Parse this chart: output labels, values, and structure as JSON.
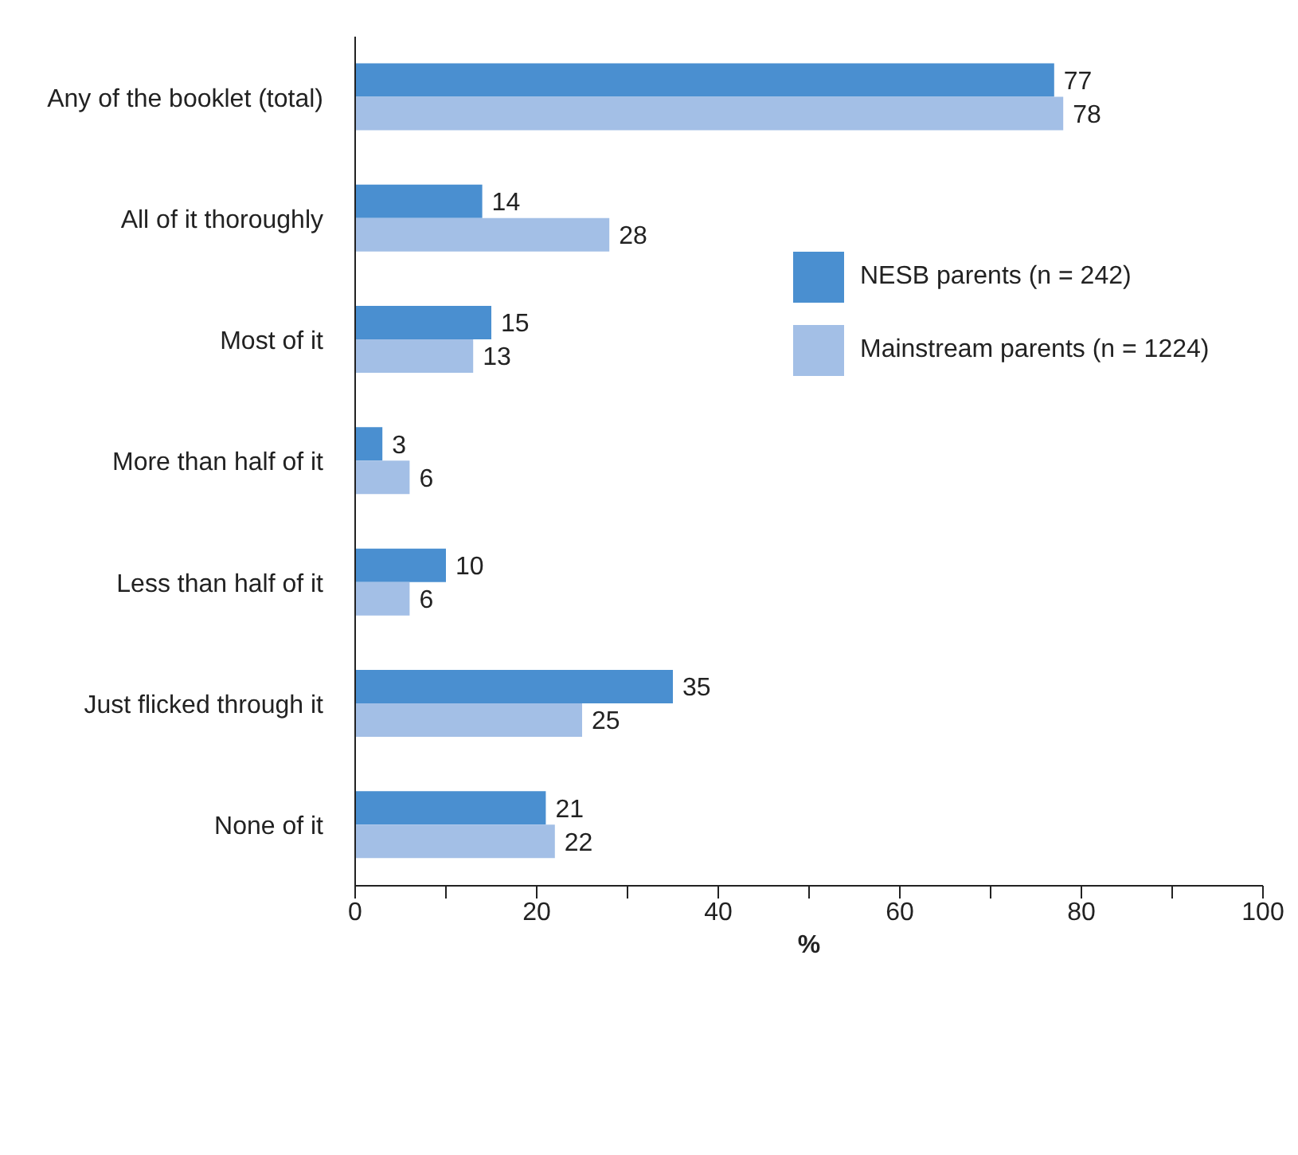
{
  "chart_data": {
    "type": "bar",
    "orientation": "horizontal",
    "xlabel": "%",
    "categories": [
      "Any of the booklet (total)",
      "All of it thoroughly",
      "Most of it",
      "More than half of it",
      "Less than half of it",
      "Just flicked through it",
      "None of it"
    ],
    "series": [
      {
        "name": "NESB parents (n = 242)",
        "color": "#4a8fd0",
        "values": [
          77,
          14,
          15,
          3,
          10,
          35,
          21
        ]
      },
      {
        "name": "Mainstream parents (n = 1224)",
        "color": "#a3bfe6",
        "values": [
          78,
          28,
          13,
          6,
          6,
          25,
          22
        ]
      }
    ],
    "xlim": [
      0,
      100
    ],
    "xticks": [
      0,
      {
        "value": 10,
        "label": null
      },
      20,
      {
        "value": 30,
        "label": null
      },
      40,
      {
        "value": 50,
        "label": null
      },
      60,
      {
        "value": 70,
        "label": null
      },
      80,
      {
        "value": 90,
        "label": null
      },
      100
    ],
    "data_labels": true,
    "grid": false,
    "legend": "right"
  }
}
